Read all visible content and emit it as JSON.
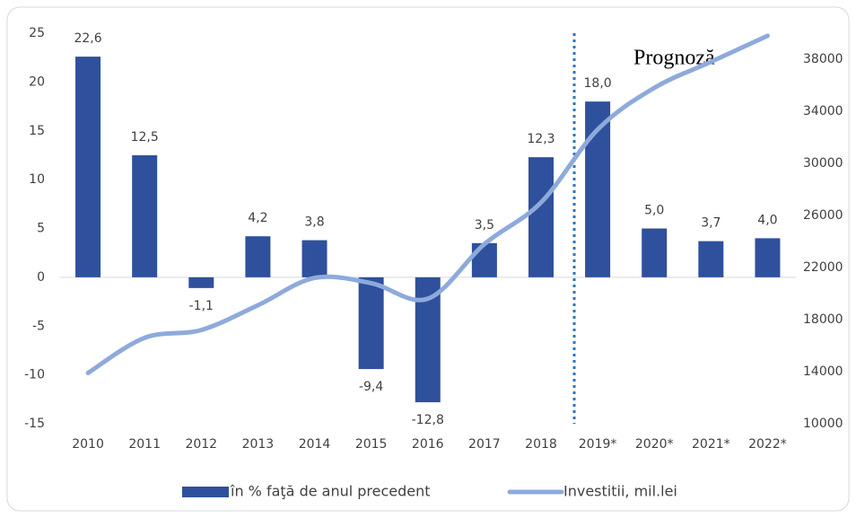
{
  "chart_data": {
    "type": "bar_line",
    "categories": [
      "2010",
      "2011",
      "2012",
      "2013",
      "2014",
      "2015",
      "2016",
      "2017",
      "2018",
      "2019*",
      "2020*",
      "2021*",
      "2022*"
    ],
    "series": [
      {
        "name": "în % faţă de anul precedent",
        "type": "bar",
        "color": "#2f509c",
        "values": [
          22.6,
          12.5,
          -1.1,
          4.2,
          3.8,
          -9.4,
          -12.8,
          3.5,
          12.3,
          18.0,
          5.0,
          3.7,
          4.0
        ],
        "value_labels": [
          "22,6",
          "12,5",
          "-1,1",
          "4,2",
          "3,8",
          "-9,4",
          "-12,8",
          "3,5",
          "12,3",
          "18,0",
          "5,0",
          "3,7",
          "4,0"
        ]
      },
      {
        "name": "Investitii, mil.lei",
        "type": "line",
        "axis": "y2",
        "color": "#8eaadb",
        "values": [
          13900,
          16600,
          17200,
          19100,
          21200,
          20800,
          19600,
          23800,
          27000,
          32600,
          35800,
          37800,
          39800
        ]
      }
    ],
    "annotation": "Prognoză",
    "ylim": [
      -15,
      25
    ],
    "yticks": [
      -15,
      -10,
      -5,
      0,
      5,
      10,
      15,
      20,
      25
    ],
    "y2lim": [
      10000,
      40000
    ],
    "y2ticks": [
      10000,
      14000,
      18000,
      22000,
      26000,
      30000,
      34000,
      38000
    ],
    "grid": false,
    "legend": "bottom"
  }
}
